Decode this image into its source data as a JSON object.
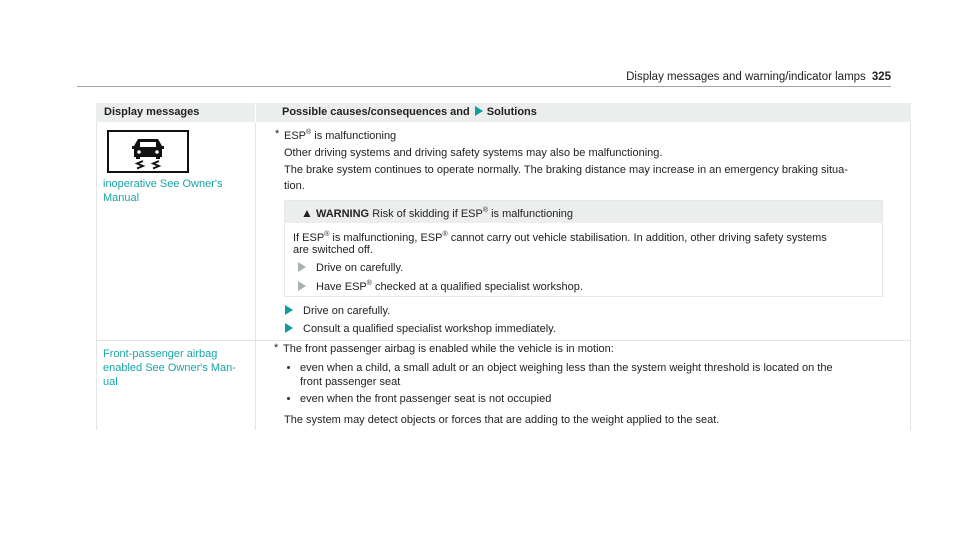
{
  "header": {
    "title": "Display messages and warning/indicator lamps",
    "page": "325"
  },
  "table": {
    "col1_header": "Display messages",
    "col2_header": "Possible causes/consequences and",
    "col2_header_suffix": "Solutions",
    "rows": [
      {
        "icon": "esp-skid-car-icon",
        "message_lines": [
          "inoperative See Owner's",
          "Manual"
        ],
        "cause": "ESP® is malfunctioning",
        "lines": [
          "Other driving systems and driving safety systems may also be malfunctioning.",
          "The brake system continues to operate normally. The braking distance may increase in an emergency braking situa-",
          "tion."
        ],
        "warning": {
          "label": "WARNING",
          "title": "Risk of skidding if ESP® is malfunctioning",
          "text_lines": [
            "If ESP® is malfunctioning, ESP® cannot carry out vehicle stabilisation. In addition, other driving safety systems",
            "are switched off."
          ],
          "steps": [
            "Drive on carefully.",
            "Have ESP® checked at a qualified specialist workshop."
          ]
        },
        "solutions": [
          "Drive on carefully.",
          "Consult a qualified specialist workshop immediately."
        ]
      },
      {
        "message_lines": [
          "Front-passenger airbag",
          "enabled See Owner's Man-",
          "ual"
        ],
        "cause": "The front passenger airbag is enabled while the vehicle is in motion:",
        "bullets": [
          [
            "even when a child, a small adult or an object weighing less than the system weight threshold is located on the",
            "front passenger seat"
          ],
          [
            "even when the front passenger seat is not occupied"
          ]
        ],
        "note": "The system may detect objects or forces that are adding to the weight applied to the seat."
      }
    ]
  },
  "colors": {
    "accent": "#17a5a5",
    "header_bg": "#eceeee"
  }
}
